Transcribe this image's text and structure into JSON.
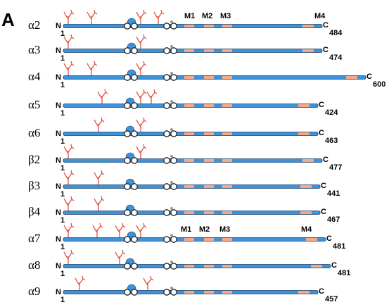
{
  "panel": "A",
  "rows": [
    {
      "subunit": "α2",
      "n": "N",
      "start": "1",
      "c": "C",
      "end": "484",
      "motifs": [
        "M1",
        "M2",
        "M3",
        "M4"
      ]
    },
    {
      "subunit": "α3",
      "n": "N",
      "start": "1",
      "c": "C",
      "end": "474"
    },
    {
      "subunit": "α4",
      "n": "N",
      "start": "1",
      "c": "C",
      "end": "600"
    },
    {
      "subunit": "α5",
      "n": "N",
      "start": "1",
      "c": "C",
      "end": "424"
    },
    {
      "subunit": "α6",
      "n": "N",
      "start": "1",
      "c": "C",
      "end": "463"
    },
    {
      "subunit": "β2",
      "n": "N",
      "start": "1",
      "c": "C",
      "end": "477"
    },
    {
      "subunit": "β3",
      "n": "N",
      "start": "1",
      "c": "C",
      "end": "441"
    },
    {
      "subunit": "β4",
      "n": "N",
      "start": "1",
      "c": "C",
      "end": "467"
    },
    {
      "subunit": "α7",
      "n": "N",
      "start": "1",
      "c": "C",
      "end": "481",
      "motifs": [
        "M1",
        "M2",
        "M3",
        "M4"
      ]
    },
    {
      "subunit": "α8",
      "n": "N",
      "start": "1",
      "c": "C",
      "end": "481"
    },
    {
      "subunit": "α9",
      "n": "N",
      "start": "1",
      "c": "C",
      "end": "457"
    }
  ]
}
